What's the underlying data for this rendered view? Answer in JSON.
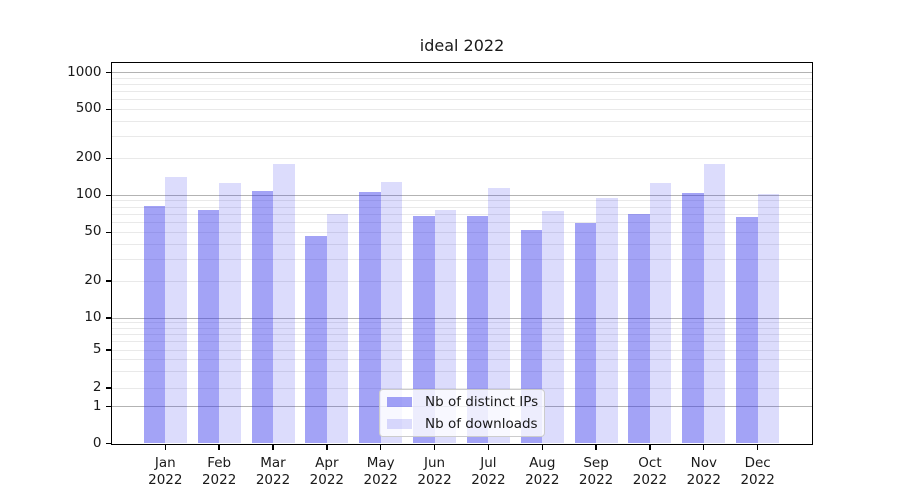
{
  "title": "ideal 2022",
  "legend": {
    "items": [
      {
        "label": "Nb of distinct IPs",
        "key": "ips"
      },
      {
        "label": "Nb of downloads",
        "key": "downloads"
      }
    ]
  },
  "y_axis": {
    "tick_labels": [
      "0",
      "1",
      "2",
      "5",
      "10",
      "20",
      "50",
      "100",
      "200",
      "500",
      "1000"
    ]
  },
  "x_axis": {
    "months": [
      "Jan",
      "Feb",
      "Mar",
      "Apr",
      "May",
      "Jun",
      "Jul",
      "Aug",
      "Sep",
      "Oct",
      "Nov",
      "Dec"
    ],
    "year": "2022"
  },
  "colors": {
    "bar_ips": "rgba(50,50,235,0.45)",
    "bar_ips_hex": "#a3a3f4",
    "bar_downloads": "rgba(50,50,235,0.17)",
    "bar_downloads_hex": "#dcdcfb",
    "grid_major": "#b3b3b3",
    "grid_minor": "#e9e9e9",
    "text": "#1a1a1a"
  },
  "chart_data": {
    "type": "bar",
    "title": "ideal 2022",
    "categories": [
      "Jan 2022",
      "Feb 2022",
      "Mar 2022",
      "Apr 2022",
      "May 2022",
      "Jun 2022",
      "Jul 2022",
      "Aug 2022",
      "Sep 2022",
      "Oct 2022",
      "Nov 2022",
      "Dec 2022"
    ],
    "series": [
      {
        "name": "Nb of distinct IPs",
        "values": [
          82,
          76,
          109,
          47,
          107,
          68,
          68,
          52,
          60,
          71,
          105,
          67
        ]
      },
      {
        "name": "Nb of downloads",
        "values": [
          140,
          127,
          180,
          70,
          128,
          76,
          115,
          74,
          95,
          125,
          180,
          102
        ]
      }
    ],
    "xlabel": "",
    "ylabel": "",
    "yscale": "symlog",
    "y_ticks": [
      0,
      1,
      2,
      5,
      10,
      20,
      50,
      100,
      200,
      500,
      1000
    ],
    "ylim": [
      0,
      1210
    ],
    "grid": true,
    "legend_position": "lower center"
  }
}
